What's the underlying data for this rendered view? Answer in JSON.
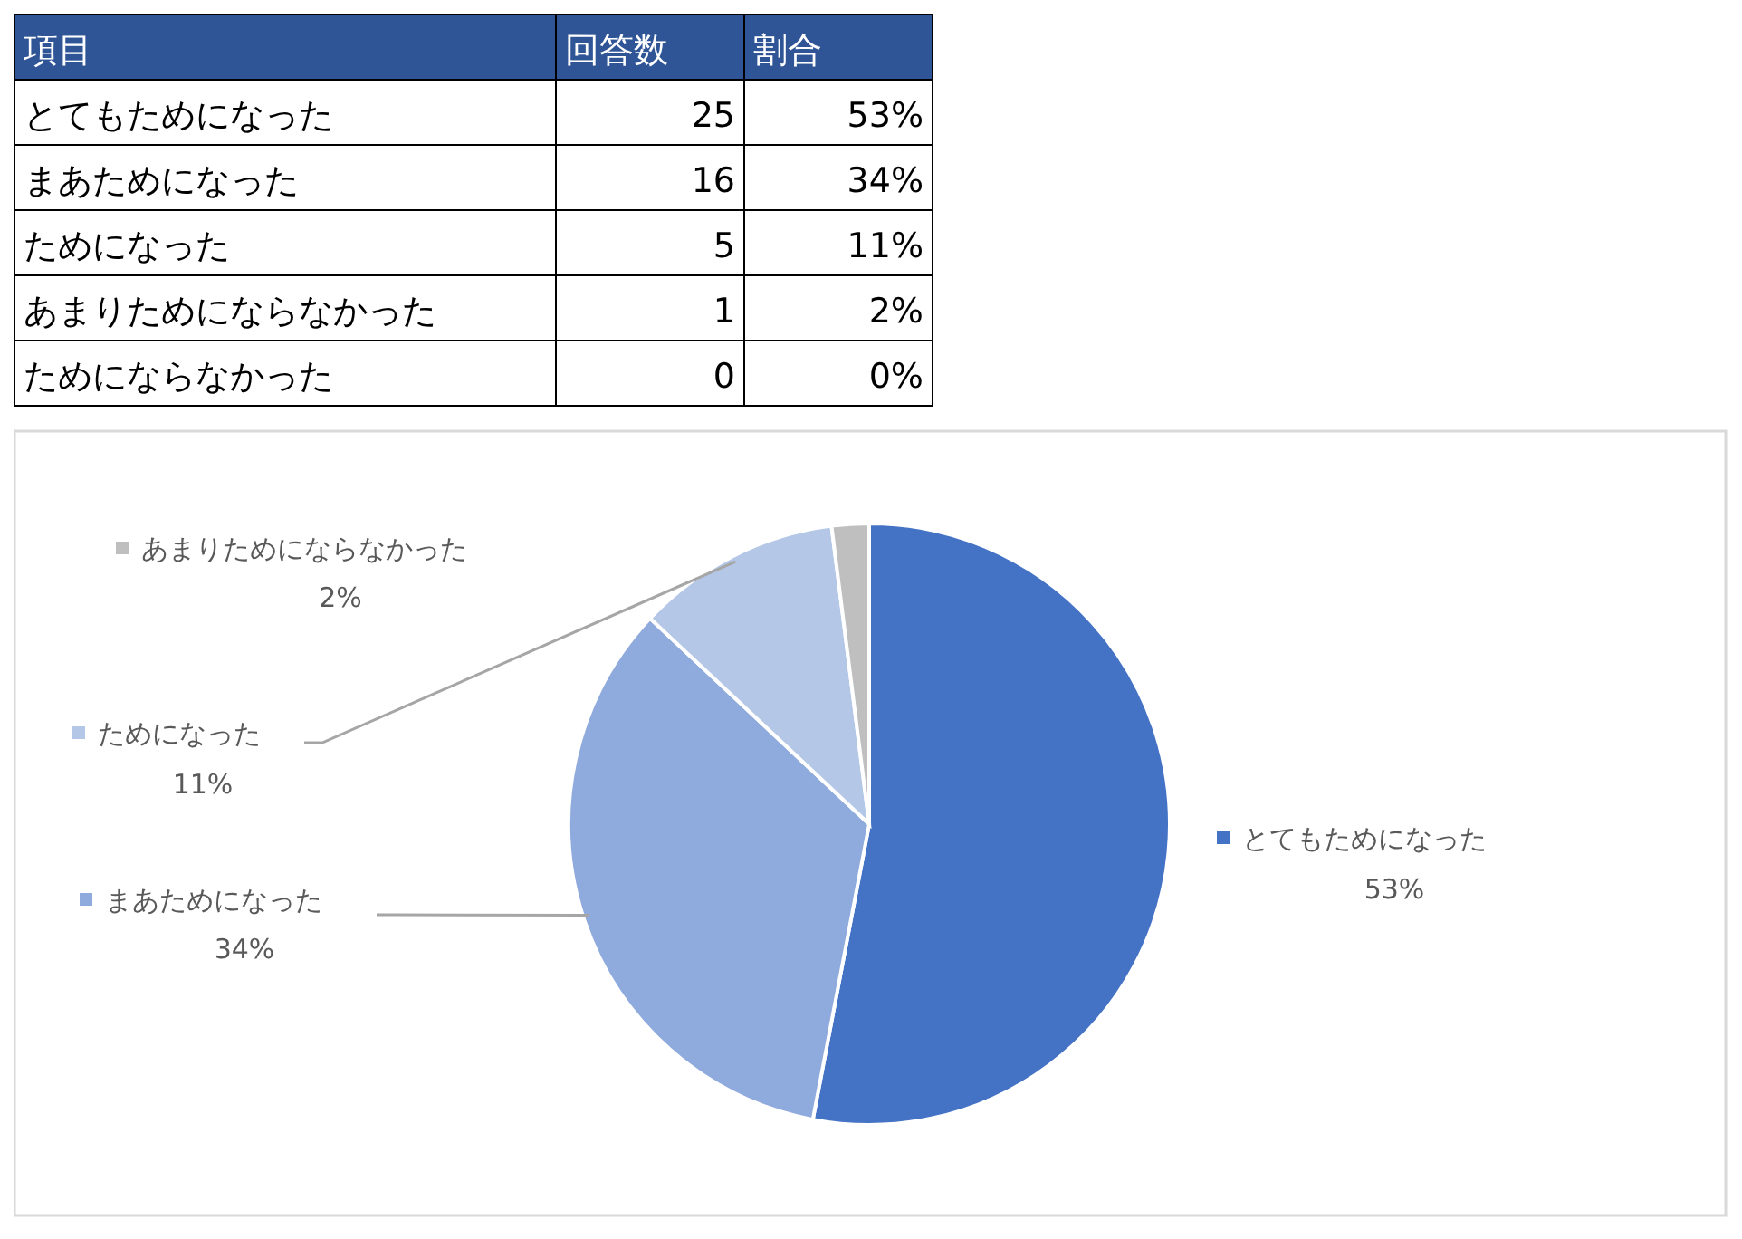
{
  "chart_data": [
    {
      "type": "other",
      "annotations": [
        "項目",
        "回答数",
        "割合",
        "とてもためになった",
        "25",
        "53%",
        "まあためになった",
        "16",
        "34%",
        "ためになった",
        "5",
        "11%",
        "あまりためにならなかった",
        "1",
        "2%",
        "ためにならなかった",
        "0",
        "0%"
      ]
    },
    {
      "type": "pie",
      "categories": [
        "とてもためになった",
        "まあためになった",
        "ためになった",
        "あまりためにならなかった"
      ],
      "values": [
        53,
        34,
        11,
        2
      ],
      "value_labels": [
        "53%",
        "34%",
        "11%",
        "2%"
      ],
      "colors": [
        "#4472c4",
        "#8faadc",
        "#b4c7e7",
        "#bfbfbf"
      ],
      "legend": "left"
    }
  ]
}
